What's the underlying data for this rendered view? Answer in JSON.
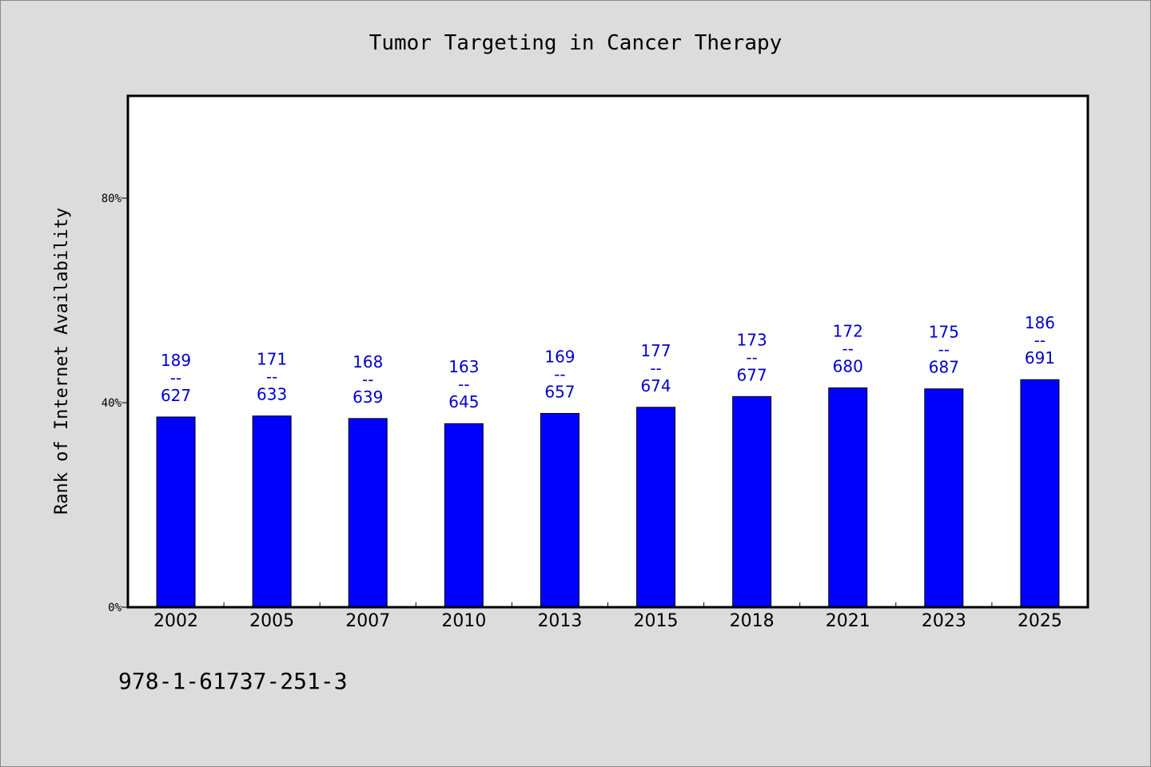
{
  "chart_data": {
    "type": "bar",
    "title": "Tumor Targeting in Cancer Therapy",
    "ylabel": "Rank of Internet Availability",
    "xlabel": "",
    "categories": [
      "2002",
      "2005",
      "2007",
      "2010",
      "2013",
      "2015",
      "2018",
      "2021",
      "2023",
      "2025"
    ],
    "values": [
      37.2,
      37.4,
      36.9,
      35.9,
      37.9,
      39.1,
      41.2,
      42.9,
      42.7,
      44.5
    ],
    "bar_labels": [
      {
        "top": "189",
        "sep": "--",
        "bottom": "627"
      },
      {
        "top": "171",
        "sep": "--",
        "bottom": "633"
      },
      {
        "top": "168",
        "sep": "--",
        "bottom": "639"
      },
      {
        "top": "163",
        "sep": "--",
        "bottom": "645"
      },
      {
        "top": "169",
        "sep": "--",
        "bottom": "657"
      },
      {
        "top": "177",
        "sep": "--",
        "bottom": "674"
      },
      {
        "top": "173",
        "sep": "--",
        "bottom": "677"
      },
      {
        "top": "172",
        "sep": "--",
        "bottom": "680"
      },
      {
        "top": "175",
        "sep": "--",
        "bottom": "687"
      },
      {
        "top": "186",
        "sep": "--",
        "bottom": "691"
      }
    ],
    "ylim": [
      0,
      100
    ],
    "yticks": [
      0,
      40,
      80
    ],
    "ytick_labels": [
      "0%",
      "40%",
      "80%"
    ],
    "grid": false,
    "legend": "none",
    "colors": {
      "bar": "#0000ff",
      "bar_edge": "#000000",
      "label": "#0000cc",
      "plot_background": "#ffffff",
      "figure_background": "#dcdcdc"
    }
  },
  "footnote": "978-1-61737-251-3"
}
